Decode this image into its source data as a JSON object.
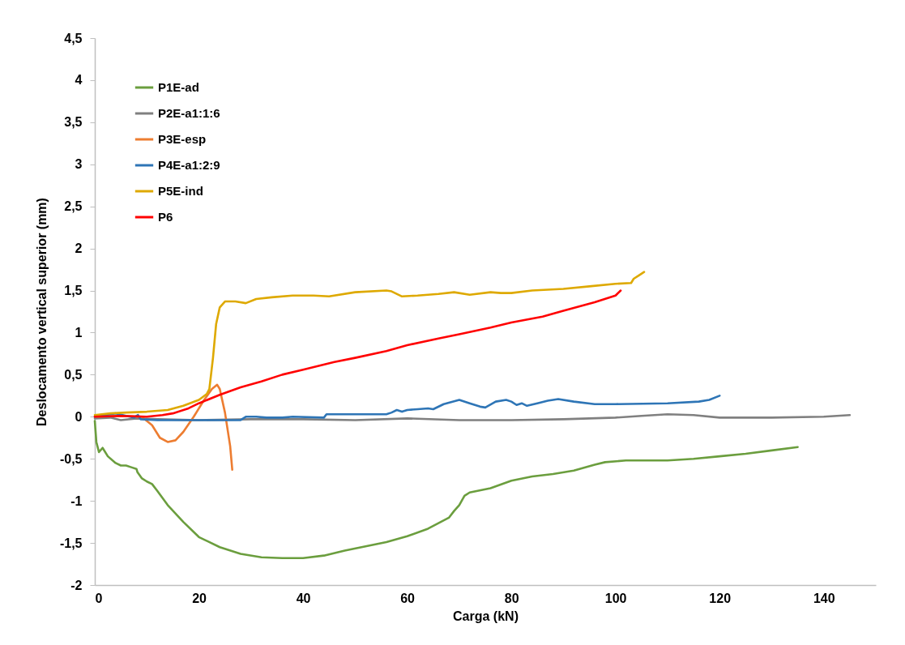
{
  "chart_data": {
    "type": "line",
    "xlabel": "Carga (kN)",
    "ylabel": "Deslocamento vertical superior (mm)",
    "xlim": [
      0,
      150
    ],
    "xticks": [
      0,
      20,
      40,
      60,
      80,
      100,
      120,
      140
    ],
    "ylim": [
      -2,
      4.5
    ],
    "yticks": [
      {
        "value": -2,
        "label": "-2"
      },
      {
        "value": -1.5,
        "label": "-1,5"
      },
      {
        "value": -1,
        "label": "-1"
      },
      {
        "value": -0.5,
        "label": "-0,5"
      },
      {
        "value": 0,
        "label": "0"
      },
      {
        "value": 0.5,
        "label": "0,5"
      },
      {
        "value": 1,
        "label": "1"
      },
      {
        "value": 1.5,
        "label": "1,5"
      },
      {
        "value": 2,
        "label": "2"
      },
      {
        "value": 2.5,
        "label": "2,5"
      },
      {
        "value": 3,
        "label": "3"
      },
      {
        "value": 3.5,
        "label": "3,5"
      },
      {
        "value": 4,
        "label": "4"
      },
      {
        "value": 4.5,
        "label": "4,5"
      }
    ],
    "grid": false,
    "legend": "top left",
    "series": [
      {
        "name": "P1E-ad",
        "color": "#6b9e3e",
        "x": [
          0,
          0.3,
          0.8,
          1.5,
          2.5,
          4,
          5,
          6,
          7,
          8,
          8.2,
          9,
          10,
          11,
          12,
          14,
          17,
          20,
          24,
          28,
          32,
          36,
          40,
          44,
          48,
          52,
          56,
          60,
          64,
          68,
          69,
          70,
          71,
          72,
          76,
          80,
          84,
          88,
          92,
          96,
          98,
          102,
          110,
          115,
          120,
          125,
          130,
          135
        ],
        "values": [
          -0.05,
          -0.3,
          -0.42,
          -0.37,
          -0.47,
          -0.55,
          -0.58,
          -0.58,
          -0.6,
          -0.62,
          -0.66,
          -0.73,
          -0.77,
          -0.8,
          -0.88,
          -1.05,
          -1.25,
          -1.43,
          -1.55,
          -1.63,
          -1.67,
          -1.68,
          -1.68,
          -1.65,
          -1.59,
          -1.54,
          -1.49,
          -1.42,
          -1.33,
          -1.2,
          -1.12,
          -1.05,
          -0.94,
          -0.9,
          -0.85,
          -0.76,
          -0.71,
          -0.68,
          -0.64,
          -0.57,
          -0.54,
          -0.52,
          -0.52,
          -0.5,
          -0.47,
          -0.44,
          -0.4,
          -0.36
        ]
      },
      {
        "name": "P2E-a1:1:6",
        "color": "#808080",
        "x": [
          0,
          3,
          5,
          8,
          12,
          20,
          30,
          40,
          50,
          60,
          70,
          80,
          90,
          100,
          105,
          110,
          115,
          120,
          130,
          140,
          145
        ],
        "values": [
          -0.02,
          -0.01,
          -0.04,
          -0.02,
          -0.03,
          -0.04,
          -0.03,
          -0.03,
          -0.04,
          -0.02,
          -0.04,
          -0.04,
          -0.03,
          -0.01,
          0.01,
          0.03,
          0.02,
          -0.01,
          -0.01,
          0,
          0.02
        ]
      },
      {
        "name": "P3E-esp",
        "color": "#ed7d31",
        "x": [
          0,
          5,
          9,
          11,
          12.5,
          14,
          15.5,
          17,
          19,
          21,
          22.5,
          23.5,
          24,
          25,
          26,
          26.4
        ],
        "values": [
          0,
          0.01,
          0,
          -0.1,
          -0.25,
          -0.3,
          -0.28,
          -0.18,
          0,
          0.2,
          0.33,
          0.38,
          0.33,
          0.05,
          -0.35,
          -0.63
        ]
      },
      {
        "name": "P4E-a1:2:9",
        "color": "#2e75b6",
        "x": [
          0,
          2,
          4,
          6,
          7.5,
          8.3,
          8.8,
          12,
          20,
          28,
          29,
          31,
          33,
          36,
          38,
          44,
          44.5,
          50,
          56,
          57,
          58,
          59,
          60,
          62,
          64,
          65,
          67,
          70,
          72,
          74,
          75,
          77,
          79,
          80,
          81,
          82,
          83,
          85,
          87,
          89,
          92,
          96,
          100,
          110,
          116,
          118,
          120
        ],
        "values": [
          0,
          0.02,
          0.04,
          0.01,
          -0.01,
          0.02,
          -0.03,
          -0.04,
          -0.04,
          -0.04,
          0,
          0,
          -0.01,
          -0.01,
          0,
          -0.01,
          0.03,
          0.03,
          0.03,
          0.05,
          0.08,
          0.06,
          0.08,
          0.09,
          0.1,
          0.09,
          0.15,
          0.2,
          0.16,
          0.12,
          0.11,
          0.18,
          0.2,
          0.18,
          0.14,
          0.16,
          0.13,
          0.16,
          0.19,
          0.21,
          0.18,
          0.15,
          0.15,
          0.16,
          0.18,
          0.2,
          0.25
        ]
      },
      {
        "name": "P5E-ind",
        "color": "#dea900",
        "x": [
          0,
          3,
          6,
          10,
          14,
          17,
          20,
          21.5,
          22,
          22.7,
          23.3,
          24,
          25,
          27,
          29,
          31,
          34,
          38,
          42,
          45,
          50,
          56,
          57,
          59,
          62,
          66,
          69,
          72,
          76,
          78,
          80,
          84,
          90,
          95,
          100,
          103,
          103.5,
          104.5,
          105.5
        ],
        "values": [
          0.02,
          0.04,
          0.05,
          0.06,
          0.08,
          0.13,
          0.2,
          0.27,
          0.33,
          0.7,
          1.1,
          1.3,
          1.37,
          1.37,
          1.35,
          1.4,
          1.42,
          1.44,
          1.44,
          1.43,
          1.48,
          1.5,
          1.49,
          1.43,
          1.44,
          1.46,
          1.48,
          1.45,
          1.48,
          1.47,
          1.47,
          1.5,
          1.52,
          1.55,
          1.58,
          1.59,
          1.64,
          1.68,
          1.72
        ]
      },
      {
        "name": "P6",
        "color": "#ff0000",
        "x": [
          0,
          5,
          10,
          13,
          15,
          18,
          20,
          24,
          28,
          32,
          36,
          40,
          46,
          50,
          56,
          60,
          66,
          70,
          76,
          80,
          86,
          90,
          96,
          100,
          101
        ],
        "values": [
          0,
          0.01,
          0,
          0.02,
          0.04,
          0.1,
          0.16,
          0.26,
          0.35,
          0.42,
          0.5,
          0.56,
          0.65,
          0.7,
          0.78,
          0.85,
          0.93,
          0.98,
          1.06,
          1.12,
          1.19,
          1.26,
          1.36,
          1.44,
          1.5
        ]
      }
    ]
  }
}
